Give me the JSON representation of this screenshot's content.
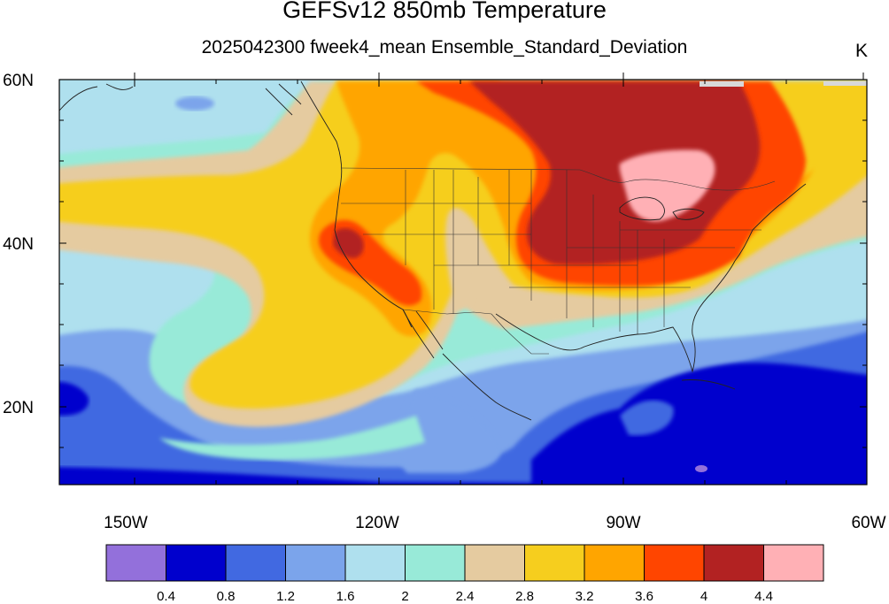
{
  "header": {
    "title": "GEFSv12 850mb Temperature",
    "subtitle": "2025042300 fweek4_mean Ensemble_Standard_Deviation",
    "units": "K"
  },
  "axes": {
    "lat_labels": [
      "60N",
      "40N",
      "20N"
    ],
    "lon_labels": [
      "150W",
      "120W",
      "90W",
      "60W"
    ],
    "lat_range": [
      10,
      60
    ],
    "lon_range": [
      -161,
      -60
    ]
  },
  "colorbar": {
    "colors": [
      "#9370DB",
      "#0000CD",
      "#4169E1",
      "#7BA4EB",
      "#AFE0EE",
      "#98EAD8",
      "#E5CBA0",
      "#F6CE1E",
      "#FFA500",
      "#FF4500",
      "#B22222",
      "#FFB0B5"
    ],
    "levels": [
      "0.4",
      "0.8",
      "1.2",
      "1.6",
      "2",
      "2.4",
      "2.8",
      "3.2",
      "3.6",
      "4",
      "4.4"
    ]
  }
}
